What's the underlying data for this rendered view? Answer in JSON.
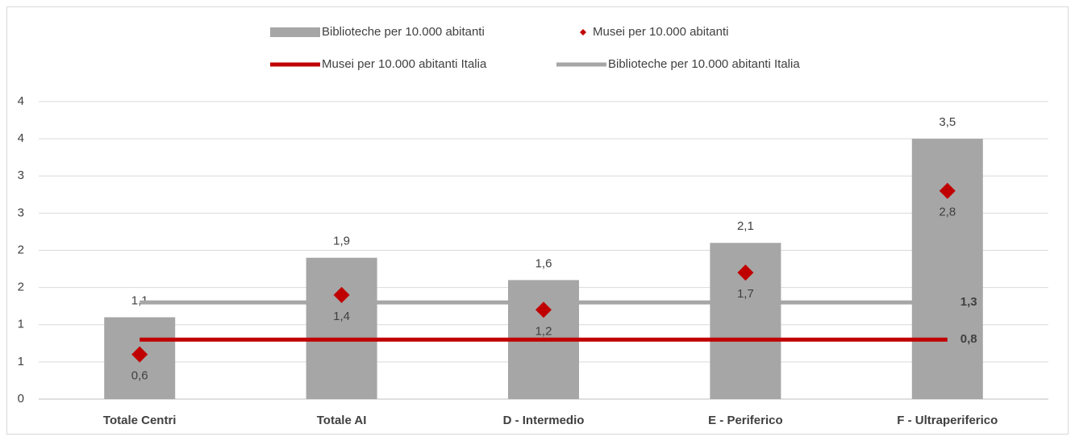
{
  "chart_data": {
    "type": "bar",
    "categories": [
      "Totale Centri",
      "Totale AI",
      "D - Intermedio",
      "E - Periferico",
      "F - Ultraperiferico"
    ],
    "series": [
      {
        "name": "Biblioteche per 10.000 abitanti",
        "type": "bar",
        "color": "#a6a6a6",
        "values": [
          1.1,
          1.9,
          1.6,
          2.1,
          3.5
        ],
        "value_labels": [
          "1,1",
          "1,9",
          "1,6",
          "2,1",
          "3,5"
        ]
      },
      {
        "name": "Musei per 10.000 abitanti",
        "type": "scatter",
        "color": "#c00000",
        "values": [
          0.6,
          1.4,
          1.2,
          1.7,
          2.8
        ],
        "value_labels": [
          "0,6",
          "1,4",
          "1,2",
          "1,7",
          "2,8"
        ]
      },
      {
        "name": "Musei per 10.000 abitanti Italia",
        "type": "line",
        "color": "#c00000",
        "values": [
          0.8,
          0.8,
          0.8,
          0.8,
          0.8
        ],
        "value_labels": [
          null,
          null,
          null,
          null,
          "0,8"
        ]
      },
      {
        "name": "Biblioteche per 10.000 abitanti Italia",
        "type": "line",
        "color": "#a6a6a6",
        "values": [
          1.3,
          1.3,
          1.3,
          1.3,
          1.3
        ],
        "value_labels": [
          null,
          null,
          null,
          null,
          "1,3"
        ]
      }
    ],
    "ylim": [
      0,
      4
    ],
    "yticks": [
      0,
      {
        "value": 0.5,
        "label": "1"
      },
      1,
      {
        "value": 1.5,
        "label": "2"
      },
      2,
      {
        "value": 2.5,
        "label": "3"
      },
      3,
      {
        "value": 3.5,
        "label": "4"
      },
      4
    ],
    "grid": true,
    "legend": "top"
  }
}
